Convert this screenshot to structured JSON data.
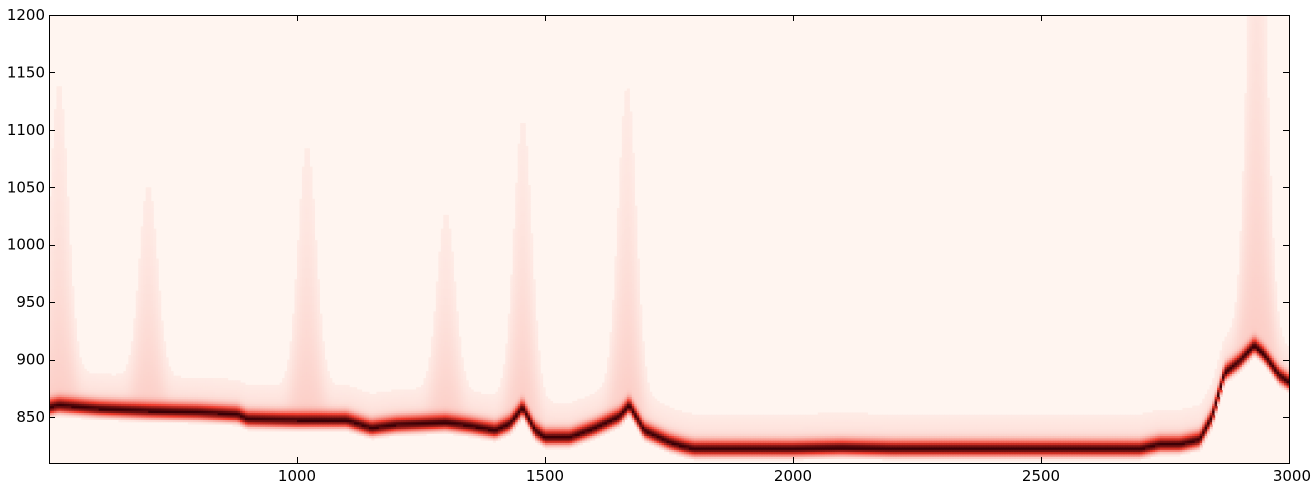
{
  "chart_data": {
    "type": "heatmap",
    "title": "",
    "xlabel": "",
    "ylabel": "",
    "xlim": [
      500,
      3000
    ],
    "ylim": [
      810,
      1200
    ],
    "xticks": [
      1000,
      1500,
      2000,
      2500,
      3000
    ],
    "yticks": [
      850,
      900,
      950,
      1000,
      1050,
      1100,
      1150,
      1200
    ],
    "xtick_labels": [
      "1000",
      "1500",
      "2000",
      "2500",
      "3000"
    ],
    "ytick_labels": [
      "850",
      "900",
      "950",
      "1000",
      "1050",
      "1100",
      "1150",
      "1200"
    ],
    "grid": false,
    "colormap": "Reds",
    "colors": {
      "low": "#fff5f0",
      "mid": "#ef3b2c",
      "high": "#3a0006"
    },
    "ridge": {
      "x": [
        500,
        520,
        600,
        700,
        800,
        880,
        900,
        1000,
        1100,
        1150,
        1200,
        1300,
        1350,
        1400,
        1430,
        1455,
        1480,
        1500,
        1550,
        1600,
        1650,
        1670,
        1700,
        1750,
        1780,
        1800,
        2000,
        2100,
        2200,
        2300,
        2500,
        2700,
        2740,
        2780,
        2820,
        2845,
        2870,
        2900,
        2930,
        2950,
        2980,
        3000
      ],
      "y": [
        858,
        860,
        857,
        855,
        854,
        852,
        848,
        847,
        847,
        840,
        843,
        845,
        842,
        838,
        844,
        858,
        838,
        832,
        832,
        840,
        850,
        860,
        838,
        828,
        824,
        822,
        822,
        823,
        822,
        822,
        822,
        822,
        826,
        826,
        830,
        850,
        888,
        898,
        912,
        904,
        886,
        880
      ]
    },
    "spread_peaks": [
      {
        "x": 520,
        "spread": 180
      },
      {
        "x": 700,
        "spread": 120
      },
      {
        "x": 1020,
        "spread": 150
      },
      {
        "x": 1300,
        "spread": 110
      },
      {
        "x": 1455,
        "spread": 160
      },
      {
        "x": 1665,
        "spread": 180
      },
      {
        "x": 2935,
        "spread": 320
      }
    ]
  }
}
